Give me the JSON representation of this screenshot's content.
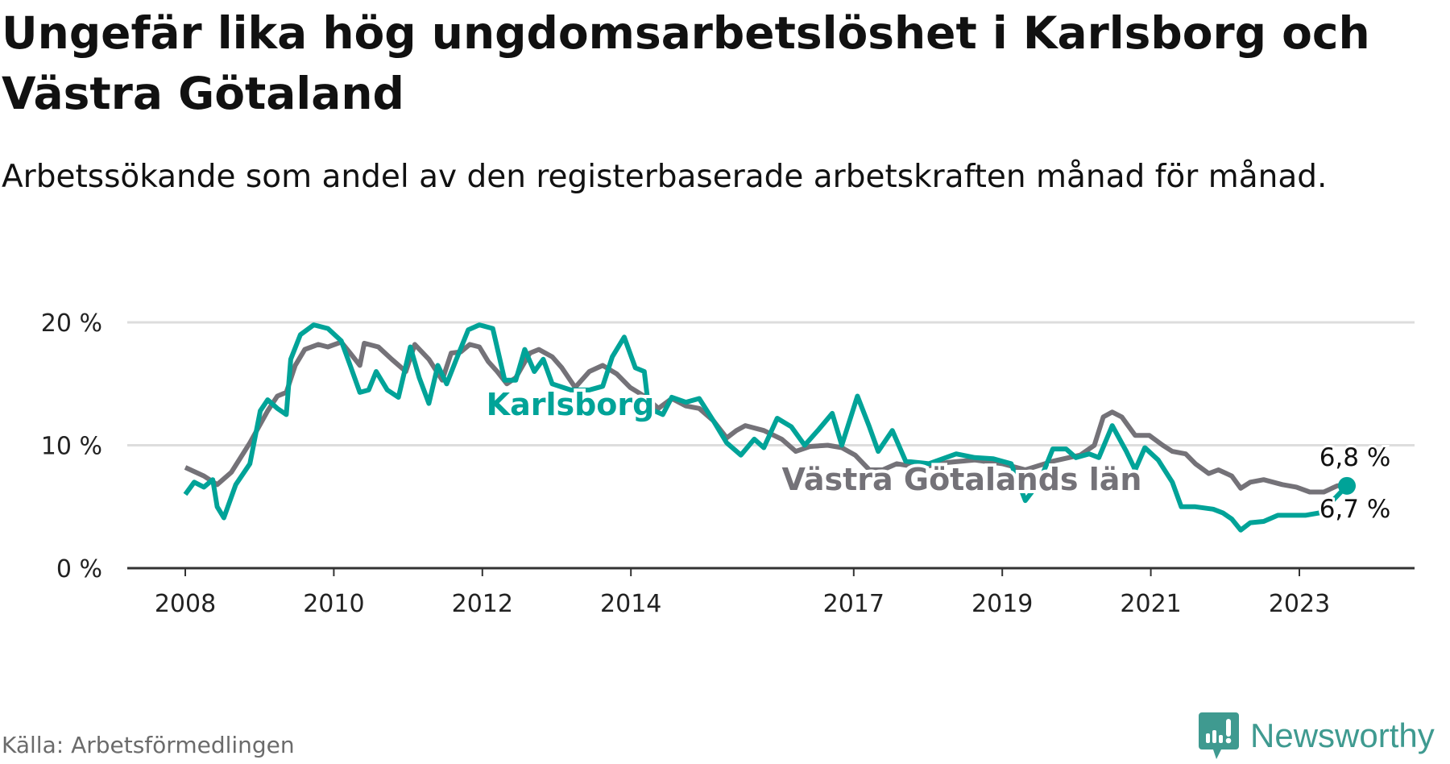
{
  "title": "Ungefär lika hög ungdomsarbetslöshet i Karlsborg och Västra Götaland",
  "subtitle": "Arbetssökande som andel av den registerbaserade arbetskraften månad för månad.",
  "source": "Källa: Arbetsförmedlingen",
  "logo": "Newsworthy",
  "colors": {
    "karlsborg": "#00a398",
    "region": "#747278",
    "grid": "#dddddd",
    "axis": "#333333"
  },
  "chart_data": {
    "type": "line",
    "title": "Ungefär lika hög ungdomsarbetslöshet i Karlsborg och Västra Götaland",
    "xlabel": "",
    "ylabel": "",
    "ylim": [
      0,
      20
    ],
    "xlim": [
      2008,
      2023.7
    ],
    "grid": true,
    "y_ticks": [
      {
        "value": 0,
        "label": "0 %"
      },
      {
        "value": 10,
        "label": "10 %"
      },
      {
        "value": 20,
        "label": "20 %"
      }
    ],
    "x_ticks": [
      {
        "value": 2008,
        "label": "2008"
      },
      {
        "value": 2010,
        "label": "2010"
      },
      {
        "value": 2012,
        "label": "2012"
      },
      {
        "value": 2014,
        "label": "2014"
      },
      {
        "value": 2017,
        "label": "2017"
      },
      {
        "value": 2019,
        "label": "2019"
      },
      {
        "value": 2021,
        "label": "2021"
      },
      {
        "value": 2023,
        "label": "2023"
      }
    ],
    "series": [
      {
        "name": "Västra Götalands län",
        "color": "#747278",
        "end_label": "6,8 %",
        "points": [
          [
            2008.0,
            8.2
          ],
          [
            2008.25,
            7.5
          ],
          [
            2008.43,
            6.8
          ],
          [
            2008.62,
            7.8
          ],
          [
            2008.87,
            10.2
          ],
          [
            2009.11,
            12.8
          ],
          [
            2009.24,
            14.0
          ],
          [
            2009.36,
            14.3
          ],
          [
            2009.48,
            16.5
          ],
          [
            2009.61,
            17.8
          ],
          [
            2009.79,
            18.2
          ],
          [
            2009.92,
            18.0
          ],
          [
            2010.1,
            18.4
          ],
          [
            2010.22,
            17.5
          ],
          [
            2010.35,
            16.5
          ],
          [
            2010.41,
            18.3
          ],
          [
            2010.6,
            18.0
          ],
          [
            2010.78,
            17.0
          ],
          [
            2010.97,
            16.0
          ],
          [
            2011.09,
            18.2
          ],
          [
            2011.28,
            17.0
          ],
          [
            2011.46,
            15.3
          ],
          [
            2011.58,
            17.5
          ],
          [
            2011.71,
            17.6
          ],
          [
            2011.83,
            18.2
          ],
          [
            2011.96,
            18.0
          ],
          [
            2012.08,
            16.8
          ],
          [
            2012.2,
            16.0
          ],
          [
            2012.33,
            15.0
          ],
          [
            2012.45,
            15.5
          ],
          [
            2012.64,
            17.5
          ],
          [
            2012.76,
            17.8
          ],
          [
            2012.94,
            17.2
          ],
          [
            2013.07,
            16.3
          ],
          [
            2013.25,
            14.7
          ],
          [
            2013.44,
            16.0
          ],
          [
            2013.62,
            16.5
          ],
          [
            2013.81,
            15.8
          ],
          [
            2013.99,
            14.7
          ],
          [
            2014.18,
            14.0
          ],
          [
            2014.37,
            13.0
          ],
          [
            2014.55,
            13.8
          ],
          [
            2014.74,
            13.2
          ],
          [
            2014.92,
            13.0
          ],
          [
            2015.11,
            12.0
          ],
          [
            2015.29,
            10.6
          ],
          [
            2015.42,
            11.2
          ],
          [
            2015.54,
            11.6
          ],
          [
            2015.79,
            11.2
          ],
          [
            2016.03,
            10.5
          ],
          [
            2016.22,
            9.5
          ],
          [
            2016.41,
            9.9
          ],
          [
            2016.65,
            10.0
          ],
          [
            2016.84,
            9.8
          ],
          [
            2017.02,
            9.2
          ],
          [
            2017.21,
            8.0
          ],
          [
            2017.39,
            8.0
          ],
          [
            2017.58,
            8.5
          ],
          [
            2017.89,
            8.2
          ],
          [
            2018.26,
            8.6
          ],
          [
            2018.63,
            8.8
          ],
          [
            2019.0,
            8.5
          ],
          [
            2019.31,
            8.0
          ],
          [
            2019.68,
            8.7
          ],
          [
            2020.05,
            9.2
          ],
          [
            2020.24,
            10.0
          ],
          [
            2020.36,
            12.3
          ],
          [
            2020.48,
            12.7
          ],
          [
            2020.61,
            12.3
          ],
          [
            2020.79,
            10.8
          ],
          [
            2020.98,
            10.8
          ],
          [
            2021.16,
            10.0
          ],
          [
            2021.29,
            9.5
          ],
          [
            2021.47,
            9.3
          ],
          [
            2021.6,
            8.5
          ],
          [
            2021.78,
            7.7
          ],
          [
            2021.91,
            8.0
          ],
          [
            2022.09,
            7.5
          ],
          [
            2022.21,
            6.5
          ],
          [
            2022.34,
            7.0
          ],
          [
            2022.52,
            7.2
          ],
          [
            2022.77,
            6.8
          ],
          [
            2022.96,
            6.6
          ],
          [
            2023.14,
            6.2
          ],
          [
            2023.33,
            6.2
          ],
          [
            2023.51,
            6.7
          ],
          [
            2023.64,
            6.8
          ]
        ]
      },
      {
        "name": "Karlsborg",
        "color": "#00a398",
        "end_label": "6,7 %",
        "points": [
          [
            2008.0,
            6.0
          ],
          [
            2008.12,
            7.0
          ],
          [
            2008.25,
            6.6
          ],
          [
            2008.37,
            7.2
          ],
          [
            2008.43,
            5.0
          ],
          [
            2008.52,
            4.1
          ],
          [
            2008.68,
            6.8
          ],
          [
            2008.87,
            8.5
          ],
          [
            2009.01,
            12.8
          ],
          [
            2009.11,
            13.7
          ],
          [
            2009.24,
            13.0
          ],
          [
            2009.36,
            12.5
          ],
          [
            2009.42,
            17.0
          ],
          [
            2009.55,
            19.0
          ],
          [
            2009.73,
            19.8
          ],
          [
            2009.92,
            19.5
          ],
          [
            2010.1,
            18.5
          ],
          [
            2010.22,
            16.5
          ],
          [
            2010.35,
            14.3
          ],
          [
            2010.47,
            14.5
          ],
          [
            2010.57,
            16.0
          ],
          [
            2010.72,
            14.5
          ],
          [
            2010.87,
            13.9
          ],
          [
            2011.03,
            18.0
          ],
          [
            2011.15,
            15.5
          ],
          [
            2011.28,
            13.4
          ],
          [
            2011.4,
            16.5
          ],
          [
            2011.52,
            15.0
          ],
          [
            2011.65,
            17.0
          ],
          [
            2011.81,
            19.4
          ],
          [
            2011.96,
            19.8
          ],
          [
            2012.14,
            19.5
          ],
          [
            2012.3,
            15.3
          ],
          [
            2012.45,
            15.3
          ],
          [
            2012.57,
            17.8
          ],
          [
            2012.7,
            16.0
          ],
          [
            2012.82,
            17.0
          ],
          [
            2012.94,
            15.0
          ],
          [
            2013.19,
            14.5
          ],
          [
            2013.44,
            14.5
          ],
          [
            2013.62,
            14.8
          ],
          [
            2013.75,
            17.2
          ],
          [
            2013.91,
            18.8
          ],
          [
            2014.06,
            16.3
          ],
          [
            2014.18,
            16.0
          ],
          [
            2014.24,
            13.0
          ],
          [
            2014.43,
            12.5
          ],
          [
            2014.55,
            13.9
          ],
          [
            2014.74,
            13.5
          ],
          [
            2014.92,
            13.8
          ],
          [
            2015.11,
            12.0
          ],
          [
            2015.29,
            10.2
          ],
          [
            2015.48,
            9.2
          ],
          [
            2015.66,
            10.5
          ],
          [
            2015.79,
            9.8
          ],
          [
            2015.97,
            12.2
          ],
          [
            2016.16,
            11.5
          ],
          [
            2016.34,
            10.0
          ],
          [
            2016.53,
            11.3
          ],
          [
            2016.71,
            12.6
          ],
          [
            2016.84,
            10.0
          ],
          [
            2017.05,
            14.0
          ],
          [
            2017.21,
            11.5
          ],
          [
            2017.33,
            9.5
          ],
          [
            2017.52,
            11.2
          ],
          [
            2017.7,
            8.7
          ],
          [
            2018.01,
            8.5
          ],
          [
            2018.38,
            9.3
          ],
          [
            2018.63,
            9.0
          ],
          [
            2018.88,
            8.9
          ],
          [
            2019.12,
            8.5
          ],
          [
            2019.31,
            5.5
          ],
          [
            2019.5,
            7.0
          ],
          [
            2019.68,
            9.7
          ],
          [
            2019.86,
            9.7
          ],
          [
            2019.99,
            9.0
          ],
          [
            2020.17,
            9.3
          ],
          [
            2020.3,
            9.0
          ],
          [
            2020.48,
            11.6
          ],
          [
            2020.67,
            9.5
          ],
          [
            2020.79,
            8.0
          ],
          [
            2020.92,
            9.8
          ],
          [
            2021.1,
            8.8
          ],
          [
            2021.29,
            7.0
          ],
          [
            2021.41,
            5.0
          ],
          [
            2021.6,
            5.0
          ],
          [
            2021.84,
            4.8
          ],
          [
            2021.97,
            4.5
          ],
          [
            2022.09,
            4.0
          ],
          [
            2022.21,
            3.1
          ],
          [
            2022.34,
            3.7
          ],
          [
            2022.52,
            3.8
          ],
          [
            2022.71,
            4.3
          ],
          [
            2022.9,
            4.3
          ],
          [
            2023.08,
            4.3
          ],
          [
            2023.27,
            4.5
          ],
          [
            2023.45,
            5.5
          ],
          [
            2023.64,
            6.7
          ]
        ]
      }
    ]
  }
}
